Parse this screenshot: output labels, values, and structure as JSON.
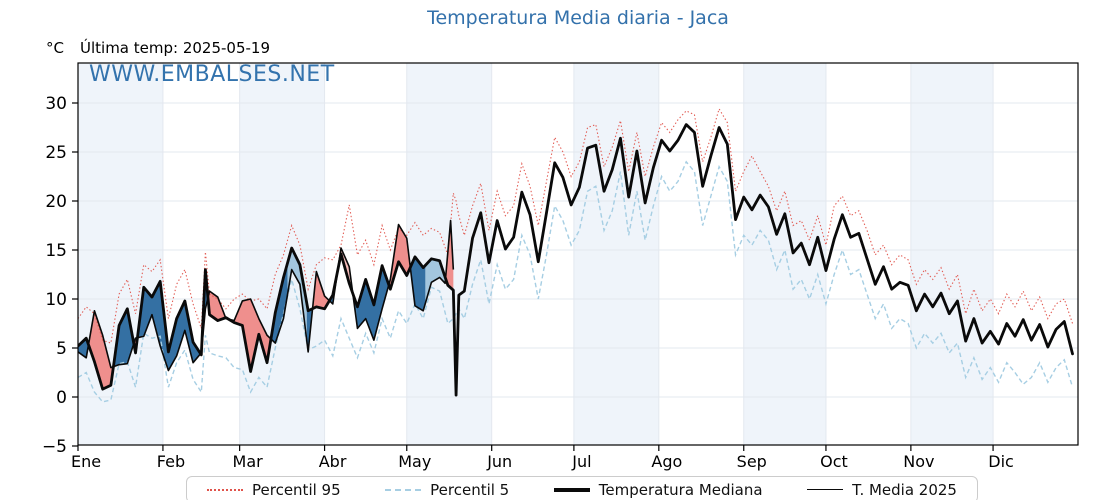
{
  "title": "Temperatura Media diaria - Jaca",
  "watermark": "WWW.EMBALSES.NET",
  "header": {
    "degree_label": "°C",
    "last_temp_label": "Última temp: 2025-05-19"
  },
  "legend": {
    "items": [
      {
        "label": "Percentil 95",
        "key": "p95"
      },
      {
        "label": "Percentil 5",
        "key": "p5"
      },
      {
        "label": "Temperatura Mediana",
        "key": "mediana"
      },
      {
        "label": "T. Media 2025",
        "key": "t2025"
      }
    ]
  },
  "chart_data": {
    "type": "line",
    "title": "Temperatura Media diaria - Jaca",
    "ylabel": "°C",
    "ylim": [
      -5,
      34.1
    ],
    "y_ticks": [
      -5,
      0,
      5,
      10,
      15,
      20,
      25,
      30
    ],
    "months": [
      "Ene",
      "Feb",
      "Mar",
      "Abr",
      "May",
      "Jun",
      "Jul",
      "Ago",
      "Sep",
      "Oct",
      "Nov",
      "Dic"
    ],
    "month_start_days": [
      0,
      31,
      59,
      90,
      120,
      151,
      181,
      212,
      243,
      273,
      304,
      334,
      365
    ],
    "grid": true,
    "legend_position": "bottom",
    "colors": {
      "title": "#3371ab",
      "watermark": "#3373ad",
      "p95": "#e0534b",
      "p5": "#a6cee3",
      "median": "#0a0a0a",
      "t2025": "#0a0a0a",
      "fill_warm": "#ef8f8d",
      "fill_warm_light": "#f6bcba",
      "fill_cold": "#3470a3",
      "fill_cold_light": "#a3c6de",
      "band": "#eff4fa",
      "grid": "#e3e8ef",
      "frame": "#000000"
    },
    "anomaly_light_ranges": [
      [
        76.5,
        83.5,
        "cold"
      ],
      [
        95.5,
        101.8,
        "warm"
      ],
      [
        126.8,
        134.2,
        "cold"
      ]
    ],
    "series": {
      "days": [
        0,
        3,
        6,
        9,
        12,
        15,
        18,
        21,
        24,
        27,
        30,
        33,
        36,
        39,
        42,
        45,
        46.5,
        48,
        51,
        54,
        57,
        60,
        63,
        66,
        69,
        72,
        75,
        78,
        81,
        84,
        87,
        90,
        93,
        96,
        99,
        102,
        105,
        108,
        111,
        114,
        117,
        120,
        123,
        126,
        129,
        132,
        135,
        137,
        138,
        139,
        141,
        144,
        147,
        150,
        153,
        156,
        159,
        162,
        165,
        168,
        171,
        174,
        177,
        180,
        183,
        186,
        189,
        192,
        195,
        198,
        201,
        204,
        207,
        210,
        213,
        216,
        219,
        222,
        225,
        228,
        231,
        234,
        237,
        240,
        243,
        246,
        249,
        252,
        255,
        258,
        261,
        264,
        267,
        270,
        273,
        276,
        279,
        282,
        285,
        288,
        291,
        294,
        297,
        300,
        303,
        306,
        309,
        312,
        315,
        318,
        321,
        324,
        327,
        330,
        333,
        336,
        339,
        342,
        345,
        348,
        351,
        354,
        357,
        360,
        363
      ],
      "mediana": [
        5.2,
        6.0,
        3.6,
        0.8,
        1.2,
        7.3,
        9.0,
        4.5,
        11.2,
        10.2,
        11.8,
        4.6,
        8.0,
        9.8,
        5.6,
        4.3,
        13.0,
        8.4,
        7.8,
        8.1,
        7.6,
        7.3,
        2.6,
        6.4,
        3.5,
        8.6,
        12.2,
        15.2,
        13.5,
        8.8,
        9.2,
        9.0,
        10.4,
        14.6,
        11.6,
        9.2,
        12.0,
        9.4,
        13.4,
        11.0,
        13.8,
        12.4,
        14.3,
        13.2,
        14.1,
        13.9,
        11.4,
        10.9,
        0.2,
        10.4,
        10.8,
        16.2,
        18.8,
        13.7,
        18.0,
        15.1,
        16.3,
        20.9,
        18.6,
        13.8,
        18.8,
        23.9,
        22.4,
        19.6,
        21.4,
        25.4,
        25.7,
        21.0,
        23.2,
        26.4,
        20.4,
        25.1,
        19.8,
        23.4,
        26.2,
        25.1,
        26.2,
        27.8,
        27.0,
        21.5,
        24.6,
        27.5,
        25.8,
        18.1,
        20.4,
        19.1,
        20.6,
        19.4,
        16.6,
        18.7,
        14.7,
        15.7,
        13.5,
        16.3,
        12.9,
        16.1,
        18.6,
        16.3,
        16.7,
        14.1,
        11.5,
        13.3,
        11.0,
        11.7,
        11.4,
        8.8,
        10.5,
        9.2,
        10.6,
        8.5,
        9.8,
        5.7,
        8.0,
        5.5,
        6.7,
        5.4,
        7.5,
        6.2,
        7.9,
        5.8,
        7.4,
        5.1,
        6.9,
        7.7,
        4.4
      ],
      "percentil95": [
        8.0,
        9.2,
        8.5,
        5.8,
        5.5,
        10.5,
        12.0,
        8.5,
        13.5,
        12.8,
        14.0,
        8.0,
        11.5,
        13.0,
        9.5,
        7.0,
        14.8,
        10.5,
        10.0,
        9.0,
        10.0,
        10.5,
        9.8,
        10.0,
        9.0,
        12.5,
        14.5,
        17.5,
        15.5,
        11.0,
        13.5,
        14.2,
        14.0,
        15.5,
        19.6,
        14.5,
        16.0,
        13.5,
        17.5,
        15.0,
        17.2,
        16.5,
        17.8,
        16.5,
        17.2,
        16.8,
        14.5,
        20.8,
        20.0,
        18.5,
        16.5,
        19.5,
        21.8,
        17.0,
        21.0,
        18.5,
        19.5,
        23.8,
        21.5,
        17.5,
        22.0,
        26.5,
        25.0,
        22.5,
        24.0,
        27.5,
        27.8,
        23.5,
        25.5,
        28.2,
        23.0,
        27.0,
        22.5,
        25.5,
        28.0,
        27.0,
        28.3,
        29.2,
        28.8,
        24.0,
        26.5,
        29.4,
        28.0,
        21.0,
        23.0,
        24.6,
        23.0,
        21.5,
        19.0,
        21.0,
        17.5,
        18.0,
        16.0,
        18.5,
        15.5,
        19.5,
        20.5,
        18.5,
        19.0,
        17.0,
        14.5,
        15.5,
        13.5,
        14.5,
        14.0,
        11.5,
        13.0,
        12.0,
        13.2,
        11.0,
        12.5,
        8.5,
        11.0,
        8.8,
        10.0,
        8.5,
        10.5,
        9.2,
        10.8,
        8.8,
        10.2,
        8.0,
        9.5,
        10.0,
        7.5
      ],
      "percentil5": [
        2.0,
        2.5,
        0.5,
        -0.5,
        -0.3,
        3.4,
        3.6,
        1.0,
        6.5,
        6.0,
        6.2,
        1.0,
        3.5,
        4.8,
        1.8,
        0.5,
        6.3,
        4.5,
        4.2,
        4.0,
        3.0,
        2.8,
        0.5,
        2.0,
        1.0,
        5.0,
        8.5,
        12.0,
        9.0,
        4.8,
        5.2,
        5.8,
        4.2,
        8.0,
        6.0,
        4.0,
        6.5,
        4.5,
        8.0,
        6.0,
        8.8,
        7.5,
        9.5,
        8.0,
        11.2,
        10.8,
        7.5,
        8.0,
        8.5,
        9.0,
        8.0,
        11.5,
        14.0,
        9.5,
        13.5,
        11.0,
        12.0,
        16.5,
        14.5,
        10.0,
        14.5,
        19.5,
        18.0,
        15.5,
        17.0,
        21.0,
        21.5,
        17.0,
        19.0,
        23.0,
        16.5,
        21.0,
        16.0,
        19.5,
        22.5,
        21.0,
        22.0,
        24.0,
        23.0,
        17.5,
        20.5,
        23.5,
        22.0,
        14.5,
        16.5,
        15.5,
        17.0,
        16.0,
        13.0,
        15.0,
        11.0,
        12.0,
        10.0,
        12.5,
        9.5,
        12.5,
        15.0,
        12.5,
        13.0,
        10.5,
        8.0,
        9.5,
        7.0,
        8.0,
        7.5,
        5.0,
        6.5,
        5.5,
        6.5,
        4.5,
        5.5,
        2.0,
        4.0,
        1.8,
        3.0,
        1.5,
        3.5,
        2.5,
        1.3,
        2.0,
        3.5,
        1.5,
        3.0,
        3.8,
        1.0
      ],
      "t2025_days": [
        0,
        3,
        6,
        9,
        12,
        15,
        18,
        21,
        24,
        27,
        30,
        33,
        36,
        39,
        42,
        45,
        46.5,
        48,
        51,
        54,
        57,
        60,
        63,
        66,
        69,
        72,
        75,
        78,
        81,
        84,
        87,
        90,
        93,
        96,
        99,
        102,
        105,
        108,
        111,
        114,
        117,
        120,
        123,
        126,
        129,
        132,
        134,
        136,
        137
      ],
      "t2025": [
        4.6,
        4.0,
        8.8,
        6.3,
        3.0,
        3.3,
        3.4,
        6.0,
        6.2,
        8.4,
        5.2,
        2.7,
        4.2,
        6.8,
        3.5,
        4.5,
        9.0,
        10.8,
        10.2,
        8.0,
        7.8,
        9.8,
        10.0,
        8.0,
        6.3,
        5.5,
        8.0,
        13.0,
        11.5,
        4.6,
        12.8,
        10.3,
        9.5,
        15.2,
        13.3,
        7.0,
        8.0,
        5.8,
        9.0,
        12.0,
        17.6,
        16.2,
        9.3,
        8.8,
        11.7,
        12.2,
        11.6,
        18.0,
        13.0
      ]
    }
  }
}
